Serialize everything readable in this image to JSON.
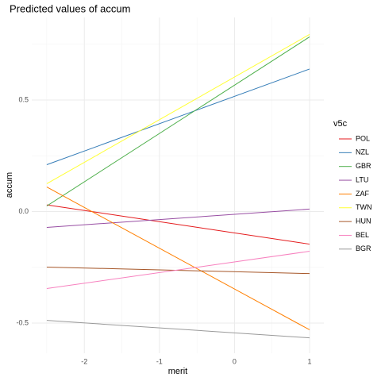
{
  "chart_data": {
    "type": "line",
    "title": "Predicted values of accum",
    "x_label": "merit",
    "y_label": "accum",
    "legend_title": "v5c",
    "x": [
      -2.5,
      1
    ],
    "series": [
      {
        "name": "POL",
        "color": "#e41a1c",
        "values": [
          0.03,
          -0.146
        ]
      },
      {
        "name": "NZL",
        "color": "#377eb8",
        "values": [
          0.21,
          0.639
        ]
      },
      {
        "name": "GBR",
        "color": "#4daf4a",
        "values": [
          0.025,
          0.783
        ]
      },
      {
        "name": "LTU",
        "color": "#984ea3",
        "values": [
          -0.071,
          0.011
        ]
      },
      {
        "name": "ZAF",
        "color": "#ff7f00",
        "values": [
          0.11,
          -0.53
        ]
      },
      {
        "name": "TWN",
        "color": "#ffff33",
        "values": [
          0.125,
          0.794
        ]
      },
      {
        "name": "HUN",
        "color": "#a65628",
        "values": [
          -0.249,
          -0.278
        ]
      },
      {
        "name": "BEL",
        "color": "#f781bf",
        "values": [
          -0.345,
          -0.178
        ]
      },
      {
        "name": "BGR",
        "color": "#999999",
        "values": [
          -0.488,
          -0.566
        ]
      }
    ],
    "xlim": [
      -2.7,
      1.19
    ],
    "xticks": [
      -2,
      -1,
      0,
      1
    ],
    "ylim": [
      -0.635,
      0.87
    ],
    "yticks": [
      -0.5,
      {
        "value": 0,
        "label": "0.0"
      },
      0.5
    ],
    "grid": true,
    "legend": "right"
  }
}
